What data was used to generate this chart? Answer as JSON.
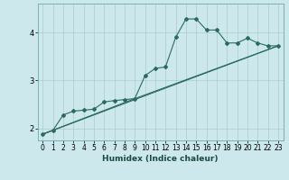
{
  "xlabel": "Humidex (Indice chaleur)",
  "ylabel": "",
  "bg_color": "#cce8ec",
  "grid_color": "#aacccc",
  "line_color": "#2a6b5e",
  "xlim": [
    -0.5,
    23.5
  ],
  "ylim": [
    1.75,
    4.6
  ],
  "yticks": [
    2,
    3,
    4
  ],
  "xticks": [
    0,
    1,
    2,
    3,
    4,
    5,
    6,
    7,
    8,
    9,
    10,
    11,
    12,
    13,
    14,
    15,
    16,
    17,
    18,
    19,
    20,
    21,
    22,
    23
  ],
  "line1_x": [
    0,
    1,
    2,
    3,
    4,
    5,
    6,
    7,
    8,
    9,
    10,
    11,
    12,
    13,
    14,
    15,
    16,
    17,
    18,
    19,
    20,
    21,
    22,
    23
  ],
  "line1_y": [
    1.88,
    1.96,
    2.28,
    2.36,
    2.38,
    2.4,
    2.55,
    2.58,
    2.6,
    2.62,
    3.1,
    3.25,
    3.28,
    3.9,
    4.28,
    4.28,
    4.05,
    4.05,
    3.78,
    3.78,
    3.88,
    3.78,
    3.72,
    3.72
  ],
  "line2_x": [
    0,
    23
  ],
  "line2_y": [
    1.88,
    3.72
  ],
  "line3_x": [
    0,
    9,
    23
  ],
  "line3_y": [
    1.88,
    2.62,
    3.72
  ],
  "font_size_label": 6.5,
  "tick_fontsize": 5.5,
  "marker_size": 2.0,
  "linewidth": 0.8
}
